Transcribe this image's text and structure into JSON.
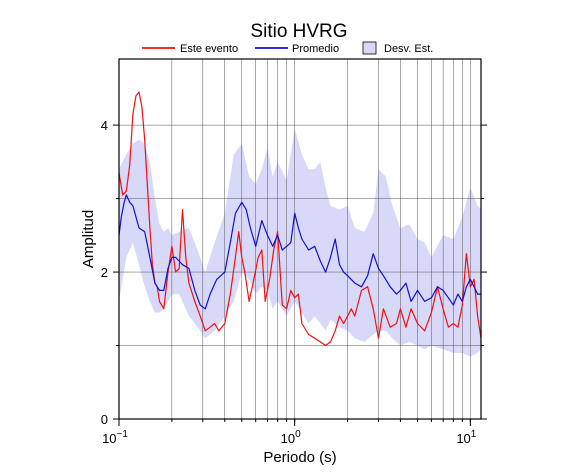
{
  "chart_data": {
    "type": "line",
    "title": "Sitio HVRG",
    "xlabel": "Periodo (s)",
    "ylabel": "Amplitud",
    "xscale": "log",
    "xlim": [
      0.1,
      11.5
    ],
    "ylim": [
      0,
      4.9
    ],
    "grid": true,
    "legend_placement": "top",
    "x_ticks": [
      {
        "value": 0.1,
        "base": "10",
        "exp": "−1"
      },
      {
        "value": 1,
        "base": "10",
        "exp": "0"
      },
      {
        "value": 10,
        "base": "10",
        "exp": "1"
      }
    ],
    "y_ticks": [
      {
        "value": 0,
        "label": "0"
      },
      {
        "value": 2,
        "label": "2"
      },
      {
        "value": 4,
        "label": "4"
      }
    ],
    "legend": [
      {
        "label": "Este evento",
        "kind": "line",
        "color": "#ee1111"
      },
      {
        "label": "Promedio",
        "kind": "line",
        "color": "#1111cc"
      },
      {
        "label": "Desv. Est.",
        "kind": "patch",
        "color": "#d8d8f8"
      }
    ],
    "series": [
      {
        "name": "Este evento",
        "color": "#ee1111",
        "x": [
          0.1,
          0.105,
          0.11,
          0.115,
          0.12,
          0.125,
          0.13,
          0.135,
          0.14,
          0.145,
          0.15,
          0.155,
          0.16,
          0.165,
          0.17,
          0.18,
          0.19,
          0.2,
          0.21,
          0.22,
          0.23,
          0.24,
          0.25,
          0.27,
          0.29,
          0.31,
          0.33,
          0.35,
          0.37,
          0.4,
          0.43,
          0.46,
          0.48,
          0.5,
          0.52,
          0.55,
          0.58,
          0.62,
          0.65,
          0.68,
          0.72,
          0.76,
          0.8,
          0.85,
          0.9,
          0.95,
          1.0,
          1.05,
          1.1,
          1.2,
          1.3,
          1.4,
          1.5,
          1.6,
          1.7,
          1.8,
          1.9,
          2.0,
          2.1,
          2.2,
          2.4,
          2.6,
          2.8,
          3.0,
          3.2,
          3.5,
          3.8,
          4.0,
          4.3,
          4.6,
          5.0,
          5.5,
          6.0,
          6.5,
          7.0,
          7.5,
          8.0,
          8.5,
          9.0,
          9.5,
          10.0,
          10.5,
          11.0,
          11.5
        ],
        "values": [
          3.35,
          3.05,
          3.1,
          3.45,
          4.15,
          4.4,
          4.45,
          4.25,
          3.8,
          3.2,
          2.6,
          2.1,
          1.85,
          1.8,
          1.6,
          1.5,
          2.0,
          2.35,
          2.0,
          2.05,
          2.85,
          2.2,
          1.85,
          1.6,
          1.4,
          1.2,
          1.25,
          1.3,
          1.2,
          1.3,
          1.7,
          2.2,
          2.55,
          2.2,
          2.0,
          1.6,
          1.85,
          2.2,
          2.3,
          1.6,
          1.9,
          2.3,
          2.55,
          1.55,
          1.5,
          1.75,
          1.65,
          1.7,
          1.3,
          1.15,
          1.1,
          1.05,
          1.0,
          1.05,
          1.2,
          1.4,
          1.3,
          1.4,
          1.5,
          1.4,
          1.75,
          1.8,
          1.5,
          1.1,
          1.5,
          1.25,
          1.3,
          1.5,
          1.25,
          1.5,
          1.3,
          1.2,
          1.45,
          1.8,
          1.5,
          1.25,
          1.3,
          1.25,
          1.55,
          2.25,
          1.8,
          1.9,
          1.4,
          1.1
        ]
      },
      {
        "name": "Promedio",
        "color": "#1111cc",
        "x": [
          0.1,
          0.103,
          0.107,
          0.11,
          0.115,
          0.12,
          0.13,
          0.14,
          0.15,
          0.16,
          0.17,
          0.18,
          0.19,
          0.2,
          0.21,
          0.23,
          0.25,
          0.27,
          0.29,
          0.31,
          0.33,
          0.36,
          0.4,
          0.43,
          0.46,
          0.5,
          0.53,
          0.56,
          0.6,
          0.65,
          0.7,
          0.75,
          0.8,
          0.85,
          0.9,
          0.95,
          1.0,
          1.05,
          1.1,
          1.2,
          1.3,
          1.4,
          1.5,
          1.6,
          1.7,
          1.8,
          1.9,
          2.0,
          2.2,
          2.4,
          2.6,
          2.8,
          3.0,
          3.2,
          3.5,
          3.8,
          4.0,
          4.3,
          4.6,
          5.0,
          5.5,
          6.0,
          6.5,
          7.0,
          7.5,
          8.0,
          8.5,
          9.0,
          9.5,
          10.0,
          10.5,
          11.0,
          11.5
        ],
        "values": [
          2.5,
          2.75,
          2.95,
          3.05,
          2.95,
          2.9,
          2.6,
          2.55,
          2.2,
          1.85,
          1.75,
          1.75,
          2.05,
          2.2,
          2.2,
          2.1,
          2.05,
          1.75,
          1.55,
          1.5,
          1.7,
          1.9,
          2.0,
          2.4,
          2.8,
          2.95,
          2.85,
          2.6,
          2.35,
          2.7,
          2.5,
          2.35,
          2.5,
          2.3,
          2.35,
          2.4,
          2.8,
          2.6,
          2.45,
          2.3,
          2.35,
          2.15,
          2.0,
          2.2,
          2.45,
          2.1,
          2.0,
          1.95,
          1.85,
          1.8,
          1.95,
          2.25,
          2.05,
          1.95,
          1.8,
          1.7,
          1.75,
          1.85,
          1.6,
          1.75,
          1.6,
          1.65,
          1.8,
          1.75,
          1.65,
          1.55,
          1.7,
          1.6,
          1.8,
          1.9,
          1.8,
          1.7,
          1.7
        ]
      },
      {
        "name": "Desv. Est.",
        "color": "#d8d8f8",
        "x": [
          0.1,
          0.11,
          0.12,
          0.13,
          0.14,
          0.15,
          0.16,
          0.17,
          0.18,
          0.19,
          0.2,
          0.22,
          0.25,
          0.28,
          0.31,
          0.35,
          0.4,
          0.45,
          0.5,
          0.55,
          0.6,
          0.65,
          0.7,
          0.75,
          0.8,
          0.9,
          1.0,
          1.1,
          1.2,
          1.3,
          1.4,
          1.5,
          1.6,
          1.8,
          2.0,
          2.2,
          2.5,
          2.8,
          3.0,
          3.3,
          3.6,
          4.0,
          4.5,
          5.0,
          5.5,
          6.0,
          7.0,
          8.0,
          9.0,
          10.0,
          11.0,
          11.5
        ],
        "upper": [
          3.4,
          3.6,
          3.75,
          3.8,
          3.75,
          3.5,
          3.0,
          2.65,
          2.55,
          2.6,
          2.5,
          2.55,
          2.6,
          2.3,
          2.0,
          2.4,
          2.8,
          3.6,
          3.75,
          3.3,
          3.2,
          3.4,
          3.7,
          3.3,
          3.5,
          3.25,
          3.95,
          3.6,
          3.4,
          3.4,
          3.5,
          3.15,
          2.9,
          2.85,
          2.9,
          2.6,
          2.55,
          2.8,
          3.4,
          3.3,
          2.9,
          2.6,
          2.65,
          2.45,
          2.4,
          2.2,
          2.5,
          2.45,
          2.75,
          3.15,
          2.9,
          2.85
        ],
        "lower": [
          1.6,
          2.2,
          2.4,
          2.1,
          1.8,
          1.6,
          1.45,
          1.45,
          1.5,
          1.6,
          1.7,
          1.7,
          1.4,
          1.25,
          1.1,
          1.2,
          1.4,
          1.6,
          2.0,
          1.9,
          1.7,
          1.8,
          1.75,
          1.5,
          1.6,
          1.4,
          1.6,
          1.45,
          1.3,
          1.4,
          1.3,
          1.2,
          1.35,
          1.25,
          1.2,
          1.1,
          1.05,
          1.15,
          1.2,
          1.2,
          1.1,
          1.0,
          1.05,
          1.0,
          0.95,
          1.0,
          0.95,
          0.9,
          0.9,
          0.85,
          0.9,
          0.95
        ]
      }
    ]
  }
}
